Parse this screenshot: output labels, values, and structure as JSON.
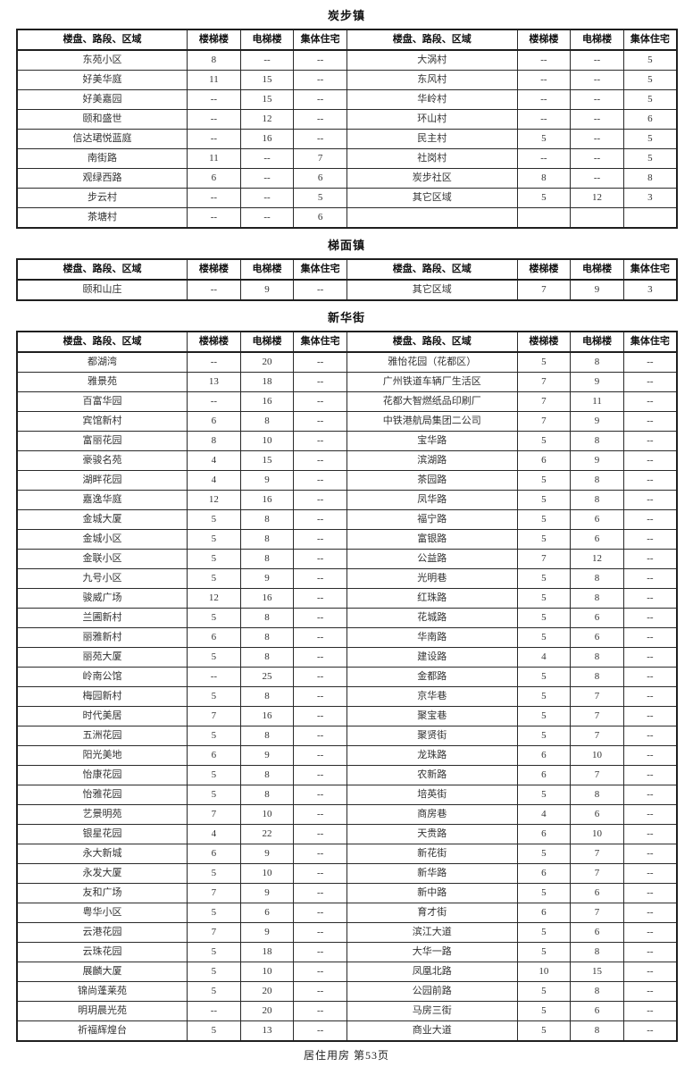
{
  "page": {
    "footer": "居住用房 第53页"
  },
  "colors": {
    "text": "#222222",
    "border": "#1f1f1f",
    "background": "#ffffff"
  },
  "table_columns": [
    "楼盘、路段、区域",
    "楼梯楼",
    "电梯楼",
    "集体住宅",
    "楼盘、路段、区域",
    "楼梯楼",
    "电梯楼",
    "集体住宅"
  ],
  "sections": [
    {
      "title": "炭步镇",
      "rows": [
        [
          "东苑小区",
          "8",
          "--",
          "--",
          "大涡村",
          "--",
          "--",
          "5"
        ],
        [
          "好美华庭",
          "11",
          "15",
          "--",
          "东风村",
          "--",
          "--",
          "5"
        ],
        [
          "好美嘉园",
          "--",
          "15",
          "--",
          "华岭村",
          "--",
          "--",
          "5"
        ],
        [
          "颐和盛世",
          "--",
          "12",
          "--",
          "环山村",
          "--",
          "--",
          "6"
        ],
        [
          "信达珺悦蓝庭",
          "--",
          "16",
          "--",
          "民主村",
          "5",
          "--",
          "5"
        ],
        [
          "南街路",
          "11",
          "--",
          "7",
          "社岗村",
          "--",
          "--",
          "5"
        ],
        [
          "观绿西路",
          "6",
          "--",
          "6",
          "炭步社区",
          "8",
          "--",
          "8"
        ],
        [
          "步云村",
          "--",
          "--",
          "5",
          "其它区域",
          "5",
          "12",
          "3"
        ],
        [
          "茶塘村",
          "--",
          "--",
          "6",
          "",
          "",
          "",
          ""
        ]
      ]
    },
    {
      "title": "梯面镇",
      "rows": [
        [
          "颐和山庄",
          "--",
          "9",
          "--",
          "其它区域",
          "7",
          "9",
          "3"
        ]
      ]
    },
    {
      "title": "新华街",
      "rows": [
        [
          "都湖湾",
          "--",
          "20",
          "--",
          "雅怡花园（花都区）",
          "5",
          "8",
          "--"
        ],
        [
          "雅景苑",
          "13",
          "18",
          "--",
          "广州铁道车辆厂生活区",
          "7",
          "9",
          "--"
        ],
        [
          "百富华园",
          "--",
          "16",
          "--",
          "花都大智燃纸品印刷厂",
          "7",
          "11",
          "--"
        ],
        [
          "宾馆新村",
          "6",
          "8",
          "--",
          "中铁港航局集团二公司",
          "7",
          "9",
          "--"
        ],
        [
          "富丽花园",
          "8",
          "10",
          "--",
          "宝华路",
          "5",
          "8",
          "--"
        ],
        [
          "豪骏名苑",
          "4",
          "15",
          "--",
          "滨湖路",
          "6",
          "9",
          "--"
        ],
        [
          "湖畔花园",
          "4",
          "9",
          "--",
          "茶园路",
          "5",
          "8",
          "--"
        ],
        [
          "嘉逸华庭",
          "12",
          "16",
          "--",
          "凤华路",
          "5",
          "8",
          "--"
        ],
        [
          "金城大厦",
          "5",
          "8",
          "--",
          "福宁路",
          "5",
          "6",
          "--"
        ],
        [
          "金城小区",
          "5",
          "8",
          "--",
          "富银路",
          "5",
          "6",
          "--"
        ],
        [
          "金联小区",
          "5",
          "8",
          "--",
          "公益路",
          "7",
          "12",
          "--"
        ],
        [
          "九号小区",
          "5",
          "9",
          "--",
          "光明巷",
          "5",
          "8",
          "--"
        ],
        [
          "骏威广场",
          "12",
          "16",
          "--",
          "红珠路",
          "5",
          "8",
          "--"
        ],
        [
          "兰圃新村",
          "5",
          "8",
          "--",
          "花城路",
          "5",
          "6",
          "--"
        ],
        [
          "丽雅新村",
          "6",
          "8",
          "--",
          "华南路",
          "5",
          "6",
          "--"
        ],
        [
          "丽苑大厦",
          "5",
          "8",
          "--",
          "建设路",
          "4",
          "8",
          "--"
        ],
        [
          "岭南公馆",
          "--",
          "25",
          "--",
          "金都路",
          "5",
          "8",
          "--"
        ],
        [
          "梅园新村",
          "5",
          "8",
          "--",
          "京华巷",
          "5",
          "7",
          "--"
        ],
        [
          "时代美居",
          "7",
          "16",
          "--",
          "聚宝巷",
          "5",
          "7",
          "--"
        ],
        [
          "五洲花园",
          "5",
          "8",
          "--",
          "聚贤街",
          "5",
          "7",
          "--"
        ],
        [
          "阳光美地",
          "6",
          "9",
          "--",
          "龙珠路",
          "6",
          "10",
          "--"
        ],
        [
          "怡康花园",
          "5",
          "8",
          "--",
          "农新路",
          "6",
          "7",
          "--"
        ],
        [
          "怡雅花园",
          "5",
          "8",
          "--",
          "培英街",
          "5",
          "8",
          "--"
        ],
        [
          "艺景明苑",
          "7",
          "10",
          "--",
          "商房巷",
          "4",
          "6",
          "--"
        ],
        [
          "银星花园",
          "4",
          "22",
          "--",
          "天贵路",
          "6",
          "10",
          "--"
        ],
        [
          "永大新城",
          "6",
          "9",
          "--",
          "新花街",
          "5",
          "7",
          "--"
        ],
        [
          "永发大厦",
          "5",
          "10",
          "--",
          "新华路",
          "6",
          "7",
          "--"
        ],
        [
          "友和广场",
          "7",
          "9",
          "--",
          "新中路",
          "5",
          "6",
          "--"
        ],
        [
          "粤华小区",
          "5",
          "6",
          "--",
          "育才街",
          "6",
          "7",
          "--"
        ],
        [
          "云港花园",
          "7",
          "9",
          "--",
          "滨江大道",
          "5",
          "6",
          "--"
        ],
        [
          "云珠花园",
          "5",
          "18",
          "--",
          "大华一路",
          "5",
          "8",
          "--"
        ],
        [
          "展麟大厦",
          "5",
          "10",
          "--",
          "凤凰北路",
          "10",
          "15",
          "--"
        ],
        [
          "锦尚蓬莱苑",
          "5",
          "20",
          "--",
          "公园前路",
          "5",
          "8",
          "--"
        ],
        [
          "明玥晨光苑",
          "--",
          "20",
          "--",
          "马房三街",
          "5",
          "6",
          "--"
        ],
        [
          "祈福辉煌台",
          "5",
          "13",
          "--",
          "商业大道",
          "5",
          "8",
          "--"
        ]
      ]
    }
  ]
}
